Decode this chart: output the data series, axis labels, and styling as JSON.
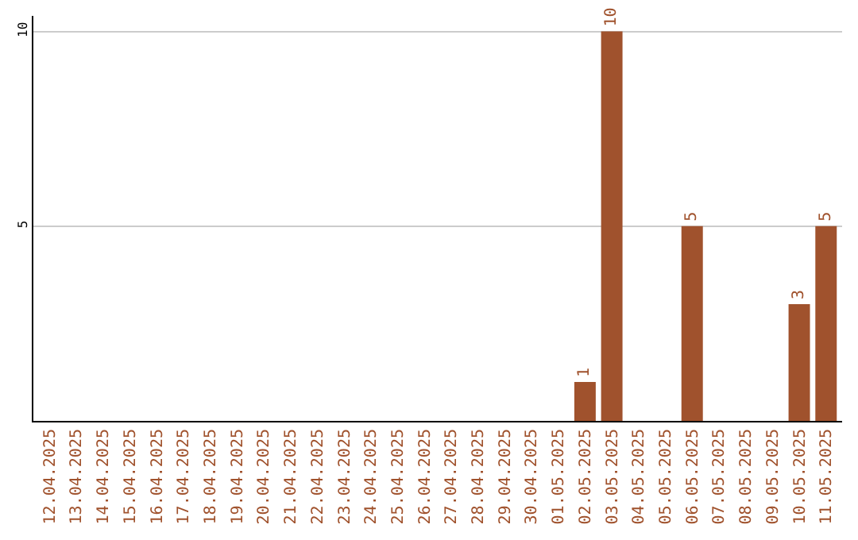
{
  "chart_data": {
    "type": "bar",
    "categories": [
      "12.04.2025",
      "13.04.2025",
      "14.04.2025",
      "15.04.2025",
      "16.04.2025",
      "17.04.2025",
      "18.04.2025",
      "19.04.2025",
      "20.04.2025",
      "21.04.2025",
      "22.04.2025",
      "23.04.2025",
      "24.04.2025",
      "25.04.2025",
      "26.04.2025",
      "27.04.2025",
      "28.04.2025",
      "29.04.2025",
      "30.04.2025",
      "01.05.2025",
      "02.05.2025",
      "03.05.2025",
      "04.05.2025",
      "05.05.2025",
      "06.05.2025",
      "07.05.2025",
      "08.05.2025",
      "09.05.2025",
      "10.05.2025",
      "11.05.2025"
    ],
    "values": [
      0,
      0,
      0,
      0,
      0,
      0,
      0,
      0,
      0,
      0,
      0,
      0,
      0,
      0,
      0,
      0,
      0,
      0,
      0,
      0,
      1,
      10,
      0,
      0,
      5,
      0,
      0,
      0,
      3,
      5
    ],
    "value_labels": [
      null,
      null,
      null,
      null,
      null,
      null,
      null,
      null,
      null,
      null,
      null,
      null,
      null,
      null,
      null,
      null,
      null,
      null,
      null,
      null,
      "1",
      "10",
      null,
      null,
      "5",
      null,
      null,
      null,
      "3",
      "5"
    ],
    "color": "#a0522d",
    "ylim": [
      0,
      10.4
    ],
    "yticks": [
      5,
      10
    ],
    "grid": "y"
  }
}
